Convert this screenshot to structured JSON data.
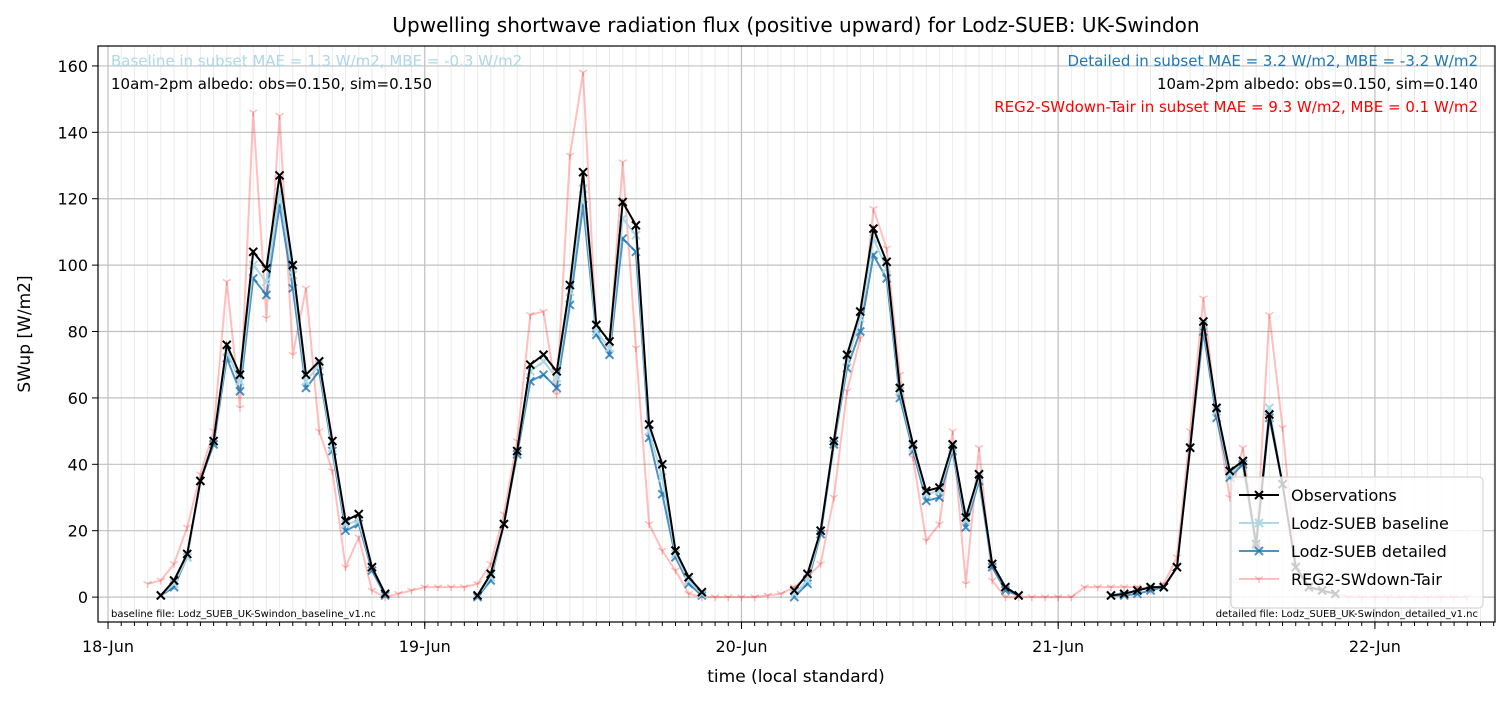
{
  "chart_data": {
    "type": "line",
    "title": "Upwelling shortwave radiation flux (positive upward) for Lodz-SUEB: UK-Swindon",
    "x_label": "time (local standard)",
    "y_label": "SWup [W/m2]",
    "xlim": [
      -0.76,
      105.1
    ],
    "ylim": [
      -7.5,
      166
    ],
    "xticks": [
      {
        "value": 0,
        "label": "18-Jun"
      },
      {
        "value": 24,
        "label": "19-Jun"
      },
      {
        "value": 48,
        "label": "20-Jun"
      },
      {
        "value": 72,
        "label": "21-Jun"
      },
      {
        "value": 96,
        "label": "22-Jun"
      }
    ],
    "yticks": [
      0,
      20,
      40,
      60,
      80,
      100,
      120,
      140,
      160
    ],
    "x_minor_step": 1,
    "grid": true,
    "legend_position": "lower right",
    "annotations_left": [
      {
        "text": "Baseline in subset MAE = 1.3 W/m2, MBE = -0.3 W/m2",
        "color": "#add8e6"
      },
      {
        "text": "10am-2pm albedo: obs=0.150, sim=0.150",
        "color": "#000000"
      }
    ],
    "annotations_right": [
      {
        "text": "Detailed in subset MAE = 3.2 W/m2, MBE = -3.2 W/m2",
        "color": "#1f77b4"
      },
      {
        "text": "10am-2pm albedo: obs=0.150, sim=0.140",
        "color": "#000000"
      },
      {
        "text": "REG2-SWdown-Tair in subset MAE = 9.3 W/m2, MBE = 0.1 W/m2",
        "color": "#ff0000"
      }
    ],
    "footnote_left": "baseline file: Lodz_SUEB_UK-Swindon_baseline_v1.nc",
    "footnote_right": "detailed file: Lodz_SUEB_UK-Swindon_detailed_v1.nc",
    "series": [
      {
        "name": "Observations",
        "color": "#000000",
        "width": 2,
        "marker": "x",
        "x": [
          4,
          5,
          6,
          7,
          8,
          9,
          10,
          11,
          12,
          13,
          14,
          15,
          16,
          17,
          18,
          19,
          20,
          21,
          22,
          23,
          24,
          25,
          26,
          27,
          28,
          29,
          30,
          31,
          32,
          33,
          34,
          35,
          36,
          37,
          38,
          39,
          40,
          41,
          42,
          43,
          44,
          45,
          46,
          47,
          48,
          49,
          50,
          51,
          52,
          53,
          54,
          55,
          56,
          57,
          58,
          59,
          60,
          61,
          62,
          63,
          64,
          65,
          66,
          67,
          68,
          69,
          70,
          71,
          72,
          73,
          74,
          75,
          76,
          77,
          78,
          79,
          80,
          81,
          82,
          83,
          84,
          85,
          86,
          87,
          88,
          89,
          90,
          91,
          92,
          93
        ],
        "values": [
          0.5,
          5,
          13,
          35,
          47,
          76,
          67,
          104,
          99,
          127,
          100,
          67,
          71,
          47,
          23,
          25,
          9,
          1,
          null,
          null,
          null,
          null,
          null,
          null,
          0.5,
          7,
          22,
          44,
          70,
          73,
          68,
          94,
          128,
          82,
          77,
          119,
          112,
          52,
          40,
          14,
          6,
          1.5,
          null,
          null,
          null,
          null,
          null,
          null,
          2,
          7,
          20,
          47,
          73,
          86,
          111,
          101,
          63,
          46,
          32,
          33,
          46,
          24,
          37,
          10,
          3,
          0.5,
          null,
          null,
          null,
          null,
          null,
          null,
          0.5,
          1,
          2,
          3,
          3,
          9,
          45,
          83,
          57,
          38,
          41,
          16,
          55,
          34,
          9,
          3,
          2,
          1
        ]
      },
      {
        "name": "Lodz-SUEB baseline",
        "color": "#add8e6",
        "width": 2,
        "marker": "x",
        "x": [
          4,
          5,
          6,
          7,
          8,
          9,
          10,
          11,
          12,
          13,
          14,
          15,
          16,
          17,
          18,
          19,
          20,
          21,
          22,
          23,
          24,
          25,
          26,
          27,
          28,
          29,
          30,
          31,
          32,
          33,
          34,
          35,
          36,
          37,
          38,
          39,
          40,
          41,
          42,
          43,
          44,
          45,
          46,
          47,
          48,
          49,
          50,
          51,
          52,
          53,
          54,
          55,
          56,
          57,
          58,
          59,
          60,
          61,
          62,
          63,
          64,
          65,
          66,
          67,
          68,
          69,
          70,
          71,
          72,
          73,
          74,
          75,
          76,
          77,
          78,
          79,
          80,
          81,
          82,
          83,
          84,
          85,
          86,
          87,
          88,
          89,
          90,
          91,
          92,
          93
        ],
        "values": [
          0.5,
          4,
          12,
          35,
          47,
          74,
          65,
          100,
          95,
          122,
          97,
          65,
          70,
          45,
          22,
          23,
          9,
          1,
          null,
          null,
          null,
          null,
          null,
          null,
          0.5,
          6,
          22,
          44,
          68,
          71,
          66,
          92,
          123,
          80,
          75,
          114,
          109,
          50,
          36,
          13,
          5,
          1,
          null,
          null,
          null,
          null,
          null,
          null,
          1,
          5,
          20,
          47,
          71,
          84,
          108,
          99,
          62,
          45,
          31,
          32,
          45,
          23,
          36,
          10,
          3,
          0.5,
          null,
          null,
          null,
          null,
          null,
          null,
          0.5,
          1,
          2,
          3,
          3,
          9,
          45,
          82,
          56,
          37,
          41,
          16,
          57,
          34,
          9,
          3,
          2,
          1
        ]
      },
      {
        "name": "Lodz-SUEB detailed",
        "color": "rgba(31,119,180,0.8)",
        "width": 2,
        "marker": "x",
        "x": [
          4,
          5,
          6,
          7,
          8,
          9,
          10,
          11,
          12,
          13,
          14,
          15,
          16,
          17,
          18,
          19,
          20,
          21,
          22,
          23,
          24,
          25,
          26,
          27,
          28,
          29,
          30,
          31,
          32,
          33,
          34,
          35,
          36,
          37,
          38,
          39,
          40,
          41,
          42,
          43,
          44,
          45,
          46,
          47,
          48,
          49,
          50,
          51,
          52,
          53,
          54,
          55,
          56,
          57,
          58,
          59,
          60,
          61,
          62,
          63,
          64,
          65,
          66,
          67,
          68,
          69,
          70,
          71,
          72,
          73,
          74,
          75,
          76,
          77,
          78,
          79,
          80,
          81,
          82,
          83,
          84,
          85,
          86,
          87,
          88,
          89,
          90,
          91,
          92,
          93
        ],
        "values": [
          0.5,
          3,
          12,
          35,
          46,
          72,
          62,
          96,
          91,
          118,
          93,
          63,
          68,
          44,
          20,
          22,
          8,
          0.5,
          null,
          null,
          null,
          null,
          null,
          null,
          0,
          5,
          22,
          43,
          65,
          67,
          63,
          88,
          118,
          79,
          73,
          108,
          104,
          48,
          31,
          12,
          4,
          0.5,
          null,
          null,
          null,
          null,
          null,
          null,
          0,
          4,
          19,
          46,
          69,
          80,
          103,
          96,
          60,
          44,
          29,
          30,
          44,
          21,
          35,
          9,
          2,
          0.5,
          null,
          null,
          null,
          null,
          null,
          null,
          0.5,
          0.5,
          1,
          2,
          3,
          9,
          45,
          80,
          54,
          36,
          40,
          15,
          54,
          34,
          9,
          3,
          2,
          1
        ]
      },
      {
        "name": "REG2-SWdown-Tair",
        "color": "rgba(255,0,0,0.25)",
        "width": 2,
        "marker": "tri",
        "x": [
          3,
          4,
          5,
          6,
          7,
          8,
          9,
          10,
          11,
          12,
          13,
          14,
          15,
          16,
          17,
          18,
          19,
          20,
          21,
          22,
          23,
          24,
          25,
          26,
          27,
          28,
          29,
          30,
          31,
          32,
          33,
          34,
          35,
          36,
          37,
          38,
          39,
          40,
          41,
          42,
          43,
          44,
          45,
          46,
          47,
          48,
          49,
          50,
          51,
          52,
          53,
          54,
          55,
          56,
          57,
          58,
          59,
          60,
          61,
          62,
          63,
          64,
          65,
          66,
          67,
          68,
          69,
          70,
          71,
          72,
          73,
          74,
          75,
          76,
          77,
          78,
          79,
          80,
          81,
          82,
          83,
          84,
          85,
          86,
          87,
          88,
          89,
          90,
          91,
          92,
          93,
          94,
          95,
          96,
          97,
          98,
          99,
          100,
          101,
          102,
          103
        ],
        "values": [
          4,
          5,
          10,
          21,
          37,
          50,
          95,
          57,
          146,
          84,
          145,
          73,
          93,
          50,
          38,
          9,
          18,
          2,
          0,
          1,
          2,
          3,
          3,
          3,
          3,
          4,
          10,
          25,
          47,
          85,
          86,
          61,
          133,
          158,
          80,
          75,
          131,
          75,
          22,
          14,
          8,
          1,
          0,
          0,
          0,
          0,
          0,
          0.5,
          1,
          3,
          6,
          10,
          30,
          62,
          78,
          117,
          105,
          67,
          42,
          17,
          22,
          50,
          4,
          45,
          5,
          0,
          0,
          0,
          0,
          0,
          0,
          3,
          3,
          3,
          3,
          3,
          2,
          4,
          12,
          50,
          90,
          55,
          30,
          45,
          15,
          85,
          51,
          10,
          3,
          2,
          1,
          0,
          0,
          0,
          0,
          0,
          0,
          0,
          0,
          0,
          0
        ]
      }
    ]
  }
}
